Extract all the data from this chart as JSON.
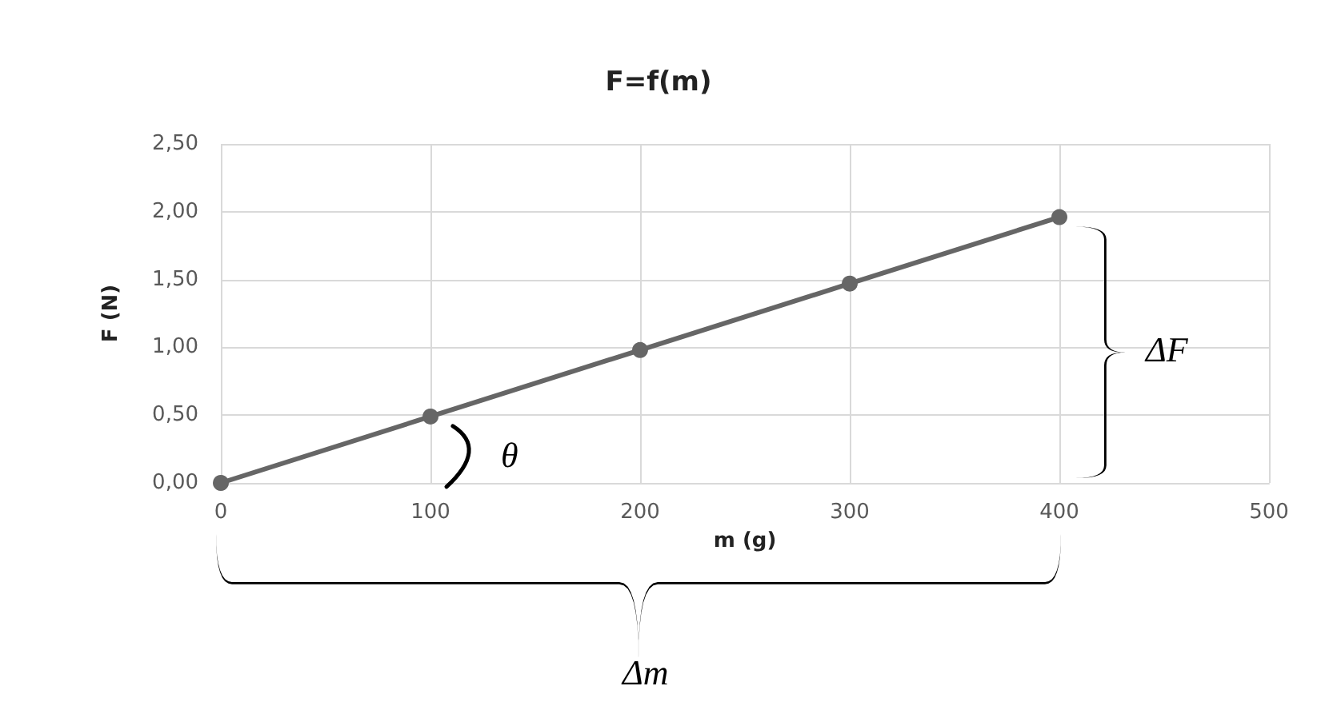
{
  "chart_data": {
    "type": "line",
    "title": "F=f(m)",
    "xlabel": "m (g)",
    "ylabel": "F (N)",
    "x": [
      0,
      100,
      200,
      300,
      400
    ],
    "series": [
      {
        "color": "#666666",
        "values": [
          0,
          0.49,
          0.98,
          1.47,
          1.96
        ]
      }
    ],
    "xlim": [
      0,
      500
    ],
    "xticks": [
      0,
      100,
      200,
      300,
      400,
      500
    ],
    "ylim": [
      0,
      2.5
    ],
    "yticks": [
      {
        "value": 0,
        "label": "0,00"
      },
      {
        "value": 0.5,
        "label": "0,50"
      },
      {
        "value": 1,
        "label": "1,00"
      },
      {
        "value": 1.5,
        "label": "1,50"
      },
      {
        "value": 2,
        "label": "2,00"
      },
      {
        "value": 2.5,
        "label": "2,50"
      }
    ],
    "grid": true,
    "marker": "circle",
    "line_style": "solid",
    "annotations": [
      "θ",
      "ΔF",
      "Δm"
    ]
  }
}
